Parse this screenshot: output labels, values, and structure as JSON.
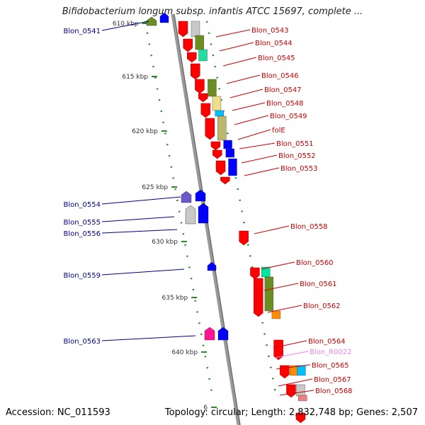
{
  "title": "Bifidobacterium longum subsp. infantis ATCC 15697, complete ...",
  "accession": "Accession: NC_011593",
  "summary": "Topology: circular; Length: 2,832,748 bp; Genes: 2,507",
  "colors": {
    "backbone": "#8c8c8c",
    "ruler": "#2a8a2a",
    "cds": "#ff0000",
    "left_label": "#00008b",
    "right_label": "#cc0000",
    "rna_label": "#ee82ee"
  },
  "ruler_ticks": [
    "610 kbp",
    "615 kbp",
    "620 kbp",
    "625 kbp",
    "630 kbp",
    "635 kbp",
    "640 kbp",
    "6"
  ],
  "genes_left": [
    "Blon_0541",
    "Blon_0554",
    "Blon_0555",
    "Blon_0556",
    "Blon_0559",
    "Blon_0563"
  ],
  "genes_right": [
    "Blon_0543",
    "Blon_0544",
    "Blon_0545",
    "Blon_0546",
    "Blon_0547",
    "Blon_0548",
    "Blon_0549",
    "folE",
    "Blon_0551",
    "Blon_0552",
    "Blon_0553",
    "Blon_0558",
    "Blon_0560",
    "Blon_0561",
    "Blon_0562",
    "Blon_0564",
    "Blon_R0022",
    "Blon_0565",
    "Blon_0567",
    "Blon_0568"
  ]
}
